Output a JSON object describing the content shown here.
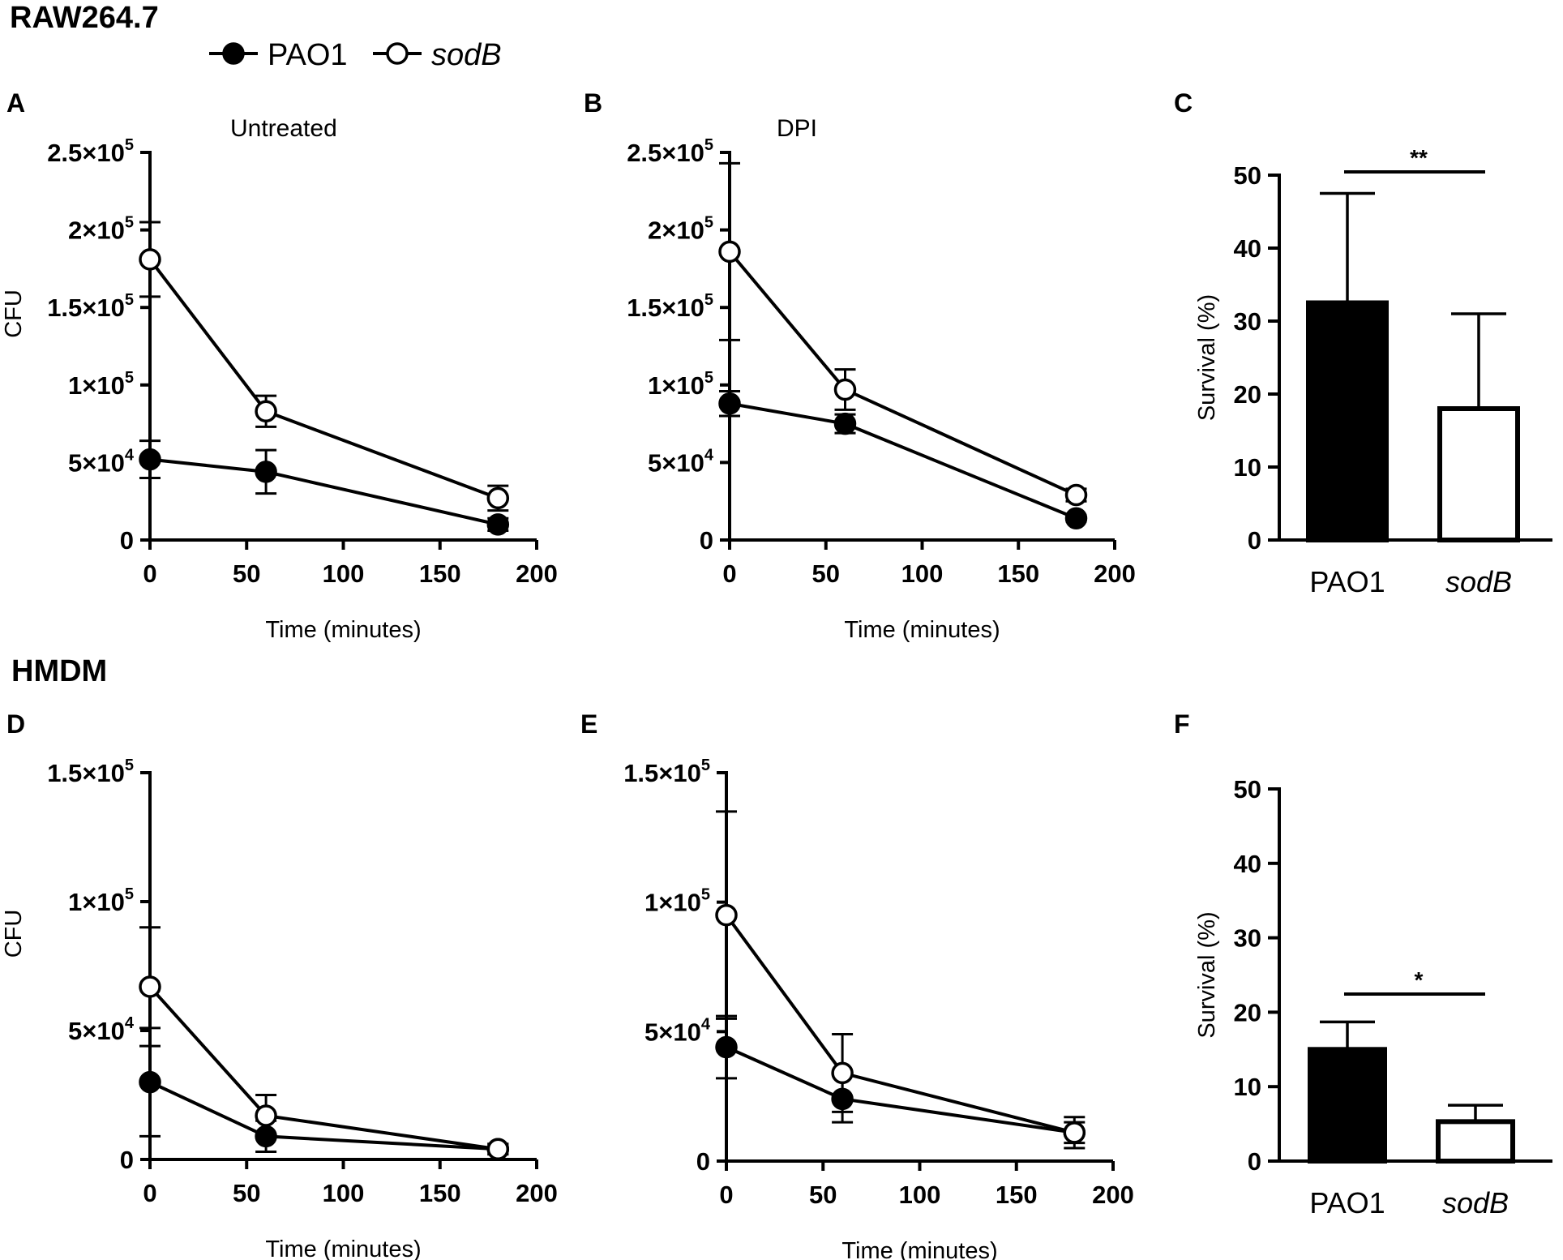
{
  "sections": [
    "RAW264.7",
    "HMDM"
  ],
  "legend": {
    "items": [
      {
        "label": "PAO1",
        "marker": "filled-circle"
      },
      {
        "label": "sodB",
        "marker": "open-circle"
      }
    ]
  },
  "colors": {
    "ink": "#000000",
    "background": "#ffffff"
  },
  "chart_data": [
    {
      "id": "A",
      "type": "line",
      "title": "Untreated",
      "xlabel": "Time (minutes)",
      "ylabel": "CFU",
      "xlim": [
        0,
        200
      ],
      "xticks": [
        "0",
        "50",
        "100",
        "150",
        "200"
      ],
      "ylim": [
        0,
        250000
      ],
      "yticks": [
        {
          "v": 0,
          "mant": "0",
          "exp": ""
        },
        {
          "v": 50000,
          "mant": "5×10",
          "exp": "4"
        },
        {
          "v": 100000,
          "mant": "1×10",
          "exp": "5"
        },
        {
          "v": 150000,
          "mant": "1.5×10",
          "exp": "5"
        },
        {
          "v": 200000,
          "mant": "2×10",
          "exp": "5"
        },
        {
          "v": 250000,
          "mant": "2.5×10",
          "exp": "5"
        }
      ],
      "x": [
        0,
        60,
        180
      ],
      "series": [
        {
          "name": "PAO1",
          "values": [
            52000,
            44000,
            10000
          ],
          "err": [
            12000,
            14000,
            4000
          ]
        },
        {
          "name": "sodB",
          "values": [
            181000,
            83000,
            27000
          ],
          "err": [
            24000,
            10000,
            8000
          ]
        }
      ]
    },
    {
      "id": "B",
      "type": "line",
      "title": "DPI",
      "xlabel": "Time (minutes)",
      "ylabel": "",
      "xlim": [
        0,
        200
      ],
      "xticks": [
        "0",
        "50",
        "100",
        "150",
        "200"
      ],
      "ylim": [
        0,
        250000
      ],
      "yticks": [
        {
          "v": 0,
          "mant": "0",
          "exp": ""
        },
        {
          "v": 50000,
          "mant": "5×10",
          "exp": "4"
        },
        {
          "v": 100000,
          "mant": "1×10",
          "exp": "5"
        },
        {
          "v": 150000,
          "mant": "1.5×10",
          "exp": "5"
        },
        {
          "v": 200000,
          "mant": "2×10",
          "exp": "5"
        },
        {
          "v": 250000,
          "mant": "2.5×10",
          "exp": "5"
        }
      ],
      "x": [
        0,
        60,
        180
      ],
      "series": [
        {
          "name": "PAO1",
          "values": [
            88000,
            75000,
            14000
          ],
          "err": [
            8000,
            6000,
            2000
          ]
        },
        {
          "name": "sodB",
          "values": [
            186000,
            97000,
            29000
          ],
          "err": [
            57000,
            13000,
            4000
          ]
        }
      ]
    },
    {
      "id": "C",
      "type": "bar",
      "title": "",
      "xlabel": "",
      "ylabel": "Survival (%)",
      "categories": [
        "PAO1",
        "sodB"
      ],
      "categories_italic": [
        false,
        true
      ],
      "ylim": [
        0,
        50
      ],
      "yticks": [
        "0",
        "10",
        "20",
        "30",
        "40",
        "50"
      ],
      "values": [
        32.5,
        18
      ],
      "err": [
        15,
        13
      ],
      "significance": "**"
    },
    {
      "id": "D",
      "type": "line",
      "title": "",
      "xlabel": "Time (minutes)",
      "ylabel": "CFU",
      "xlim": [
        0,
        200
      ],
      "xticks": [
        "0",
        "50",
        "100",
        "150",
        "200"
      ],
      "ylim": [
        0,
        150000
      ],
      "yticks": [
        {
          "v": 0,
          "mant": "0",
          "exp": ""
        },
        {
          "v": 50000,
          "mant": "5×10",
          "exp": "4"
        },
        {
          "v": 100000,
          "mant": "1×10",
          "exp": "5"
        },
        {
          "v": 150000,
          "mant": "1.5×10",
          "exp": "5"
        }
      ],
      "x": [
        0,
        60,
        180
      ],
      "series": [
        {
          "name": "PAO1",
          "values": [
            30000,
            9000,
            4000
          ],
          "err": [
            21000,
            6000,
            2000
          ]
        },
        {
          "name": "sodB",
          "values": [
            67000,
            17000,
            4000
          ],
          "err": [
            23000,
            8000,
            2000
          ]
        }
      ]
    },
    {
      "id": "E",
      "type": "line",
      "title": "",
      "xlabel": "Time (minutes)",
      "ylabel": "",
      "xlim": [
        0,
        200
      ],
      "xticks": [
        "0",
        "50",
        "100",
        "150",
        "200"
      ],
      "ylim": [
        0,
        150000
      ],
      "yticks": [
        {
          "v": 0,
          "mant": "0",
          "exp": ""
        },
        {
          "v": 50000,
          "mant": "5×10",
          "exp": "4"
        },
        {
          "v": 100000,
          "mant": "1×10",
          "exp": "5"
        },
        {
          "v": 150000,
          "mant": "1.5×10",
          "exp": "5"
        }
      ],
      "x": [
        0,
        60,
        180
      ],
      "series": [
        {
          "name": "PAO1",
          "values": [
            44000,
            24000,
            11000
          ],
          "err": [
            12000,
            9000,
            6000
          ]
        },
        {
          "name": "sodB",
          "values": [
            95000,
            34000,
            11000
          ],
          "err": [
            40000,
            15000,
            4000
          ]
        }
      ]
    },
    {
      "id": "F",
      "type": "bar",
      "title": "",
      "xlabel": "",
      "ylabel": "Survival (%)",
      "categories": [
        "PAO1",
        "sodB"
      ],
      "categories_italic": [
        false,
        true
      ],
      "ylim": [
        0,
        50
      ],
      "yticks": [
        "0",
        "10",
        "20",
        "30",
        "40",
        "50"
      ],
      "values": [
        15,
        5.3
      ],
      "err": [
        3.7,
        2.2
      ],
      "significance": "*"
    }
  ]
}
